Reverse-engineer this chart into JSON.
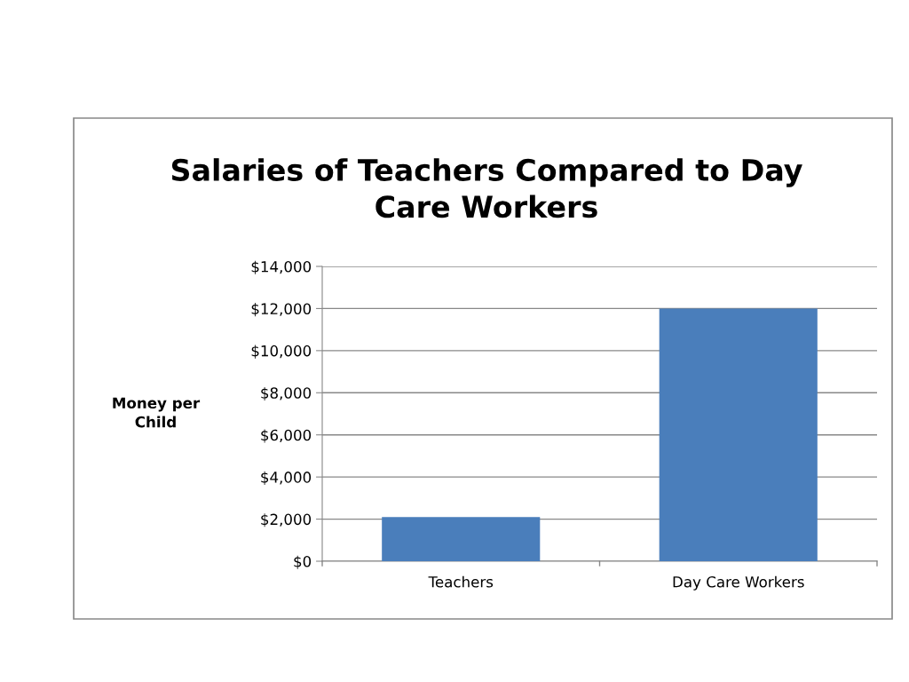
{
  "chart_data": {
    "type": "bar",
    "title": "Salaries of Teachers Compared to Day\nCare Workers",
    "ylabel": "Money per\nChild",
    "categories": [
      "Teachers",
      "Day Care Workers"
    ],
    "values": [
      2100,
      12000
    ],
    "color": "#4a7ebb",
    "ylim": [
      0,
      14000
    ],
    "yticks": [
      {
        "value": 0,
        "label": "$0"
      },
      {
        "value": 2000,
        "label": "$2,000"
      },
      {
        "value": 4000,
        "label": "$4,000"
      },
      {
        "value": 6000,
        "label": "$6,000"
      },
      {
        "value": 8000,
        "label": "$8,000"
      },
      {
        "value": 10000,
        "label": "$10,000"
      },
      {
        "value": 12000,
        "label": "$12,000"
      },
      {
        "value": 14000,
        "label": "$14,000"
      }
    ],
    "grid": "y",
    "legend": false
  }
}
